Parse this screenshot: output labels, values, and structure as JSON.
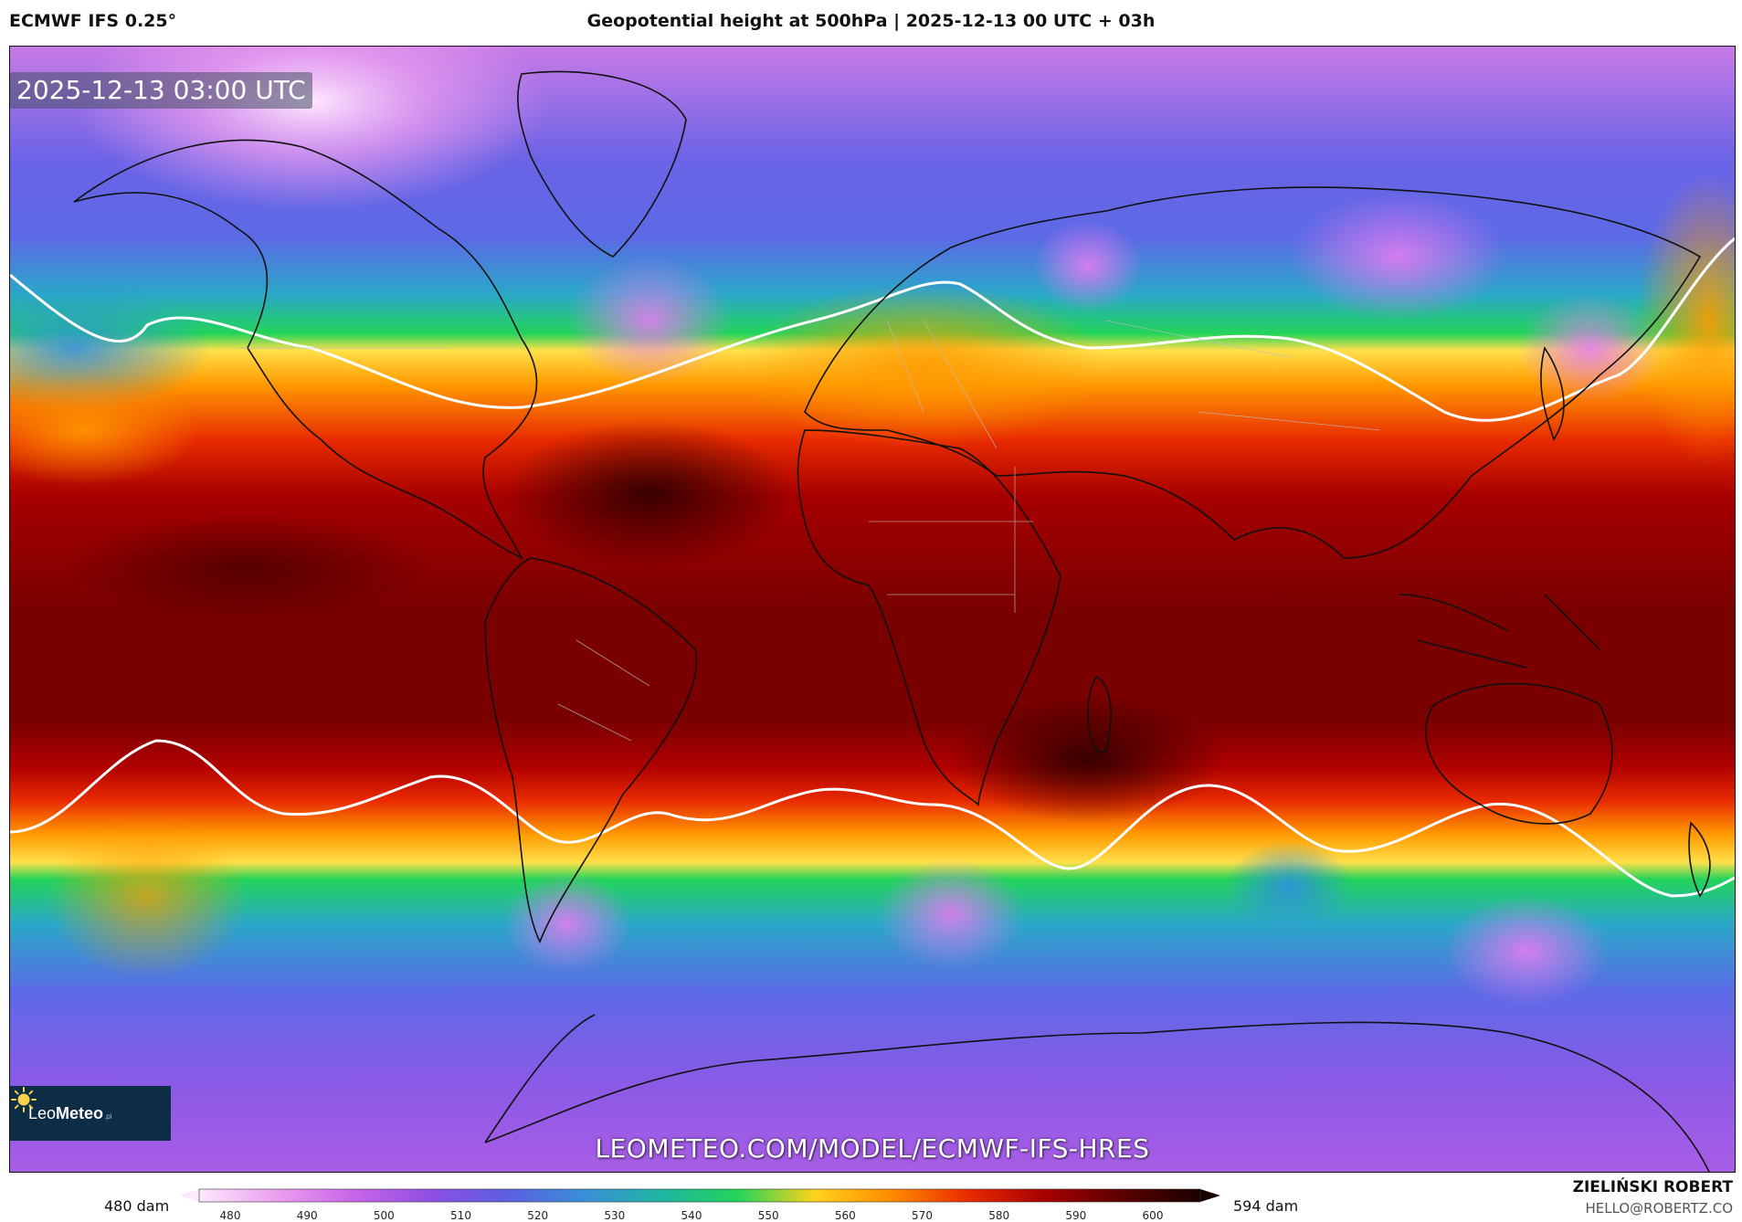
{
  "header": {
    "model": "ECMWF IFS 0.25°",
    "title": "Geopotential height at 500hPa | 2025-12-13 00 UTC + 03h"
  },
  "map": {
    "valid_time": "2025-12-13 03:00 UTC",
    "watermark": "LEOMETEO.COM/MODEL/ECMWF-IFS-HRES",
    "logo": {
      "name_light": "Leo",
      "name_bold": "Meteo",
      "tld": ".pl"
    }
  },
  "colorbar": {
    "min_label": "480 dam",
    "max_label": "594 dam",
    "ticks": [
      "480",
      "490",
      "500",
      "510",
      "520",
      "530",
      "540",
      "550",
      "560",
      "570",
      "580",
      "590",
      "600"
    ],
    "colors": [
      "#fbe8fb",
      "#ec9fef",
      "#c865e8",
      "#8f4fe3",
      "#5b5fe3",
      "#3a8fd8",
      "#1fb5a2",
      "#22d45a",
      "#ffd21a",
      "#ff8a00",
      "#e82a00",
      "#a60000",
      "#5a0000",
      "#1a0000"
    ]
  },
  "credit": {
    "name": "ZIELIŃSKI ROBERT",
    "email": "HELLO@ROBERTZ.CO"
  }
}
